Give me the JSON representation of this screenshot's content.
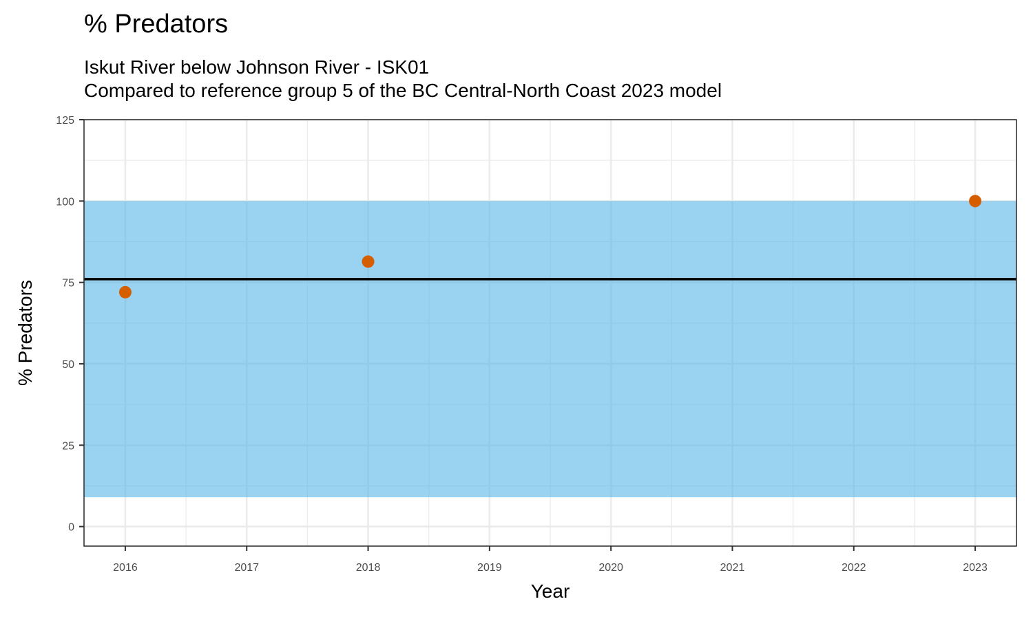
{
  "chart_data": {
    "type": "scatter",
    "title": "% Predators",
    "subtitle_lines": [
      "Iskut River below Johnson River - ISK01",
      "Compared to reference group 5 of the BC Central-North Coast 2023 model"
    ],
    "xlabel": "Year",
    "ylabel": "% Predators",
    "x_ticks": [
      "2016",
      "2017",
      "2018",
      "2019",
      "2020",
      "2021",
      "2022",
      "2023"
    ],
    "y_ticks": [
      "0",
      "25",
      "50",
      "75",
      "100",
      "125"
    ],
    "xlim": [
      2015.66,
      2023.34
    ],
    "ylim": [
      -6,
      125
    ],
    "grid": true,
    "points": [
      {
        "x": 2016,
        "y": 72
      },
      {
        "x": 2018,
        "y": 81.4
      },
      {
        "x": 2023,
        "y": 100
      }
    ],
    "reference_band": {
      "ymin": 9,
      "ymax": 100
    },
    "reference_line": {
      "y": 76
    },
    "colors": {
      "points": "#d55e00",
      "band": "#56b4e9",
      "line": "#000000",
      "grid": "#ebebeb",
      "border": "#333333"
    }
  }
}
